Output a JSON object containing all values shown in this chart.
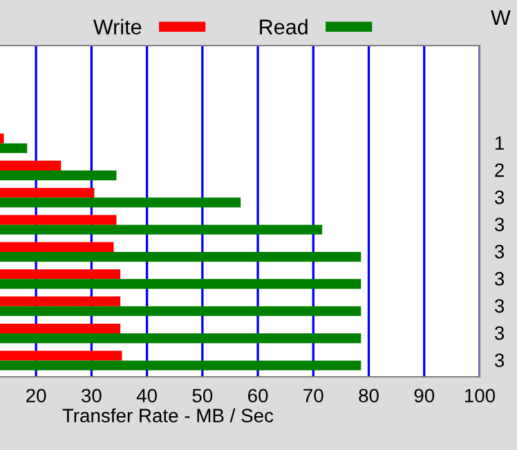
{
  "chart_data": {
    "type": "bar",
    "orientation": "horizontal",
    "xlabel": "Transfer Rate - MB / Sec",
    "categories": [
      null,
      null,
      null,
      null,
      null,
      null,
      null,
      null,
      null
    ],
    "series": [
      {
        "name": "Write",
        "color": "#ff0000",
        "values": [
          14.2,
          24.5,
          30.5,
          34.5,
          34,
          35.2,
          35.2,
          35.2,
          35.5
        ]
      },
      {
        "name": "Read",
        "color": "#008000",
        "values": [
          18.4,
          34.5,
          56.9,
          71.6,
          78.6,
          78.6,
          78.6,
          78.6,
          78.6
        ]
      }
    ],
    "xlim": [
      13.5,
      100
    ],
    "xticks": [
      20,
      30,
      40,
      50,
      60,
      70,
      80,
      90,
      100
    ],
    "grid": "x",
    "legend": "top",
    "annotations": [
      "W",
      "1",
      "2",
      "3",
      "3",
      "3",
      "3",
      "3",
      "3",
      "3"
    ]
  }
}
